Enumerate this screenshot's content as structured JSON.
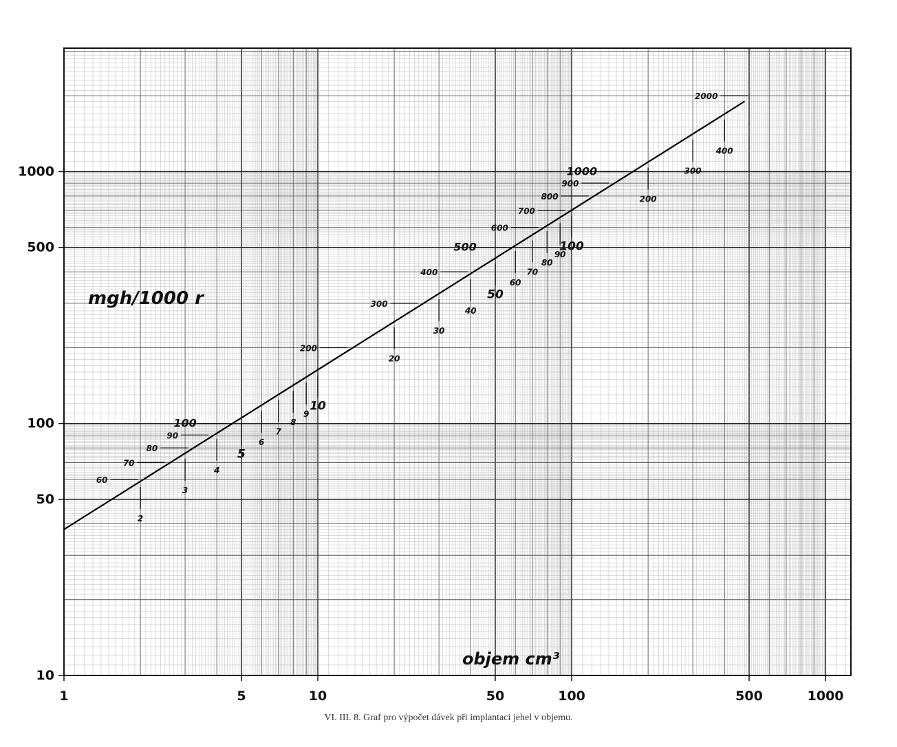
{
  "chart_data": {
    "type": "line",
    "title": "",
    "xlabel": "objem cm³",
    "ylabel": "mgh/1000 r",
    "x_scale": "log",
    "y_scale": "log",
    "xlim": [
      1,
      1000
    ],
    "ylim": [
      10,
      2000
    ],
    "x_ticks": [
      "1",
      "5",
      "10",
      "50",
      "100",
      "500",
      "1000"
    ],
    "x_tick_values": [
      1,
      5,
      10,
      50,
      100,
      500,
      1000
    ],
    "y_ticks": [
      "10",
      "50",
      "100",
      "500",
      "1000"
    ],
    "y_tick_values": [
      10,
      50,
      100,
      500,
      1000
    ],
    "grid": true,
    "series": [
      {
        "x": [
          1,
          480
        ],
        "values": [
          38,
          1900
        ]
      }
    ],
    "dose_marks": [
      {
        "label": "60",
        "y": 60
      },
      {
        "label": "70",
        "y": 70
      },
      {
        "label": "80",
        "y": 80
      },
      {
        "label": "90",
        "y": 90
      },
      {
        "label": "100",
        "y": 100
      },
      {
        "label": "200",
        "y": 200
      },
      {
        "label": "300",
        "y": 300
      },
      {
        "label": "400",
        "y": 400
      },
      {
        "label": "500",
        "y": 500
      },
      {
        "label": "600",
        "y": 600
      },
      {
        "label": "700",
        "y": 700
      },
      {
        "label": "800",
        "y": 800
      },
      {
        "label": "900",
        "y": 900
      },
      {
        "label": "1000",
        "y": 1000
      },
      {
        "label": "2000",
        "y": 2000
      }
    ],
    "volume_marks": [
      {
        "label": "2",
        "x": 2
      },
      {
        "label": "3",
        "x": 3
      },
      {
        "label": "4",
        "x": 4
      },
      {
        "label": "5",
        "x": 5
      },
      {
        "label": "6",
        "x": 6
      },
      {
        "label": "7",
        "x": 7
      },
      {
        "label": "8",
        "x": 8
      },
      {
        "label": "9",
        "x": 9
      },
      {
        "label": "10",
        "x": 10
      },
      {
        "label": "20",
        "x": 20
      },
      {
        "label": "30",
        "x": 30
      },
      {
        "label": "40",
        "x": 40
      },
      {
        "label": "50",
        "x": 50
      },
      {
        "label": "60",
        "x": 60
      },
      {
        "label": "70",
        "x": 70
      },
      {
        "label": "80",
        "x": 80
      },
      {
        "label": "90",
        "x": 90
      },
      {
        "label": "100",
        "x": 100
      },
      {
        "label": "200",
        "x": 200
      },
      {
        "label": "300",
        "x": 300
      },
      {
        "label": "400",
        "x": 400
      }
    ]
  },
  "caption": "VI. III. 8. Graf pro výpočet dávek při implantaci jehel v objemu."
}
